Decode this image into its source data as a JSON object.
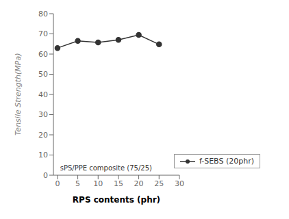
{
  "chart_data": {
    "type": "line",
    "x": [
      0,
      5,
      10,
      15,
      20,
      25
    ],
    "series": [
      {
        "name": "f-SEBS (20phr)",
        "color": "#333333",
        "marker": "circle",
        "values": [
          63.0,
          66.5,
          65.8,
          67.0,
          69.5,
          64.8
        ]
      }
    ],
    "xlabel": "RPS contents (phr)",
    "ylabel": "Tensile Strength(MPa)",
    "xlim": [
      -1,
      30
    ],
    "ylim": [
      0,
      80
    ],
    "xticks": [
      0,
      5,
      10,
      15,
      20,
      25,
      30
    ],
    "yticks": [
      0,
      10,
      20,
      30,
      40,
      50,
      60,
      70,
      80
    ],
    "annotations": [
      {
        "text": "sPS/PPE composite (75/25)",
        "x": 0.3,
        "y": 3.5
      }
    ],
    "legend": "lower right",
    "grid": false
  }
}
